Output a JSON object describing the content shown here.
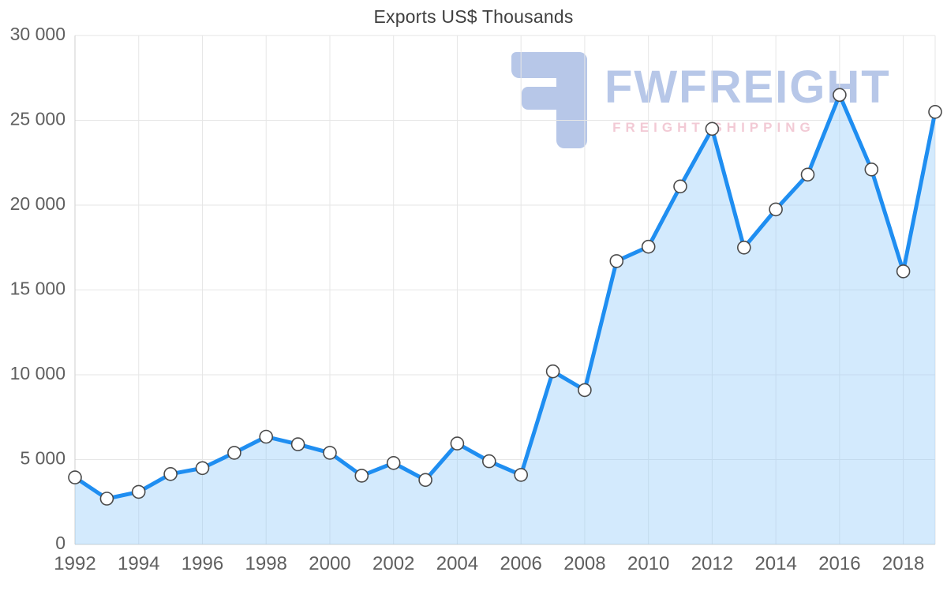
{
  "chart_data": {
    "type": "area",
    "title": "Exports US$ Thousands",
    "x": [
      1992,
      1993,
      1994,
      1995,
      1996,
      1997,
      1998,
      1999,
      2000,
      2001,
      2002,
      2003,
      2004,
      2005,
      2006,
      2007,
      2008,
      2009,
      2010,
      2011,
      2012,
      2013,
      2014,
      2015,
      2016,
      2017,
      2018,
      2019
    ],
    "values": [
      3950,
      2700,
      3100,
      4150,
      4500,
      5400,
      6350,
      5900,
      5400,
      4050,
      4800,
      3800,
      5950,
      4900,
      4100,
      10200,
      9100,
      16700,
      17550,
      21100,
      24500,
      17500,
      19750,
      21800,
      26500,
      22100,
      16100,
      25500
    ],
    "xlabel": "",
    "ylabel": "",
    "ylim": [
      0,
      30000
    ],
    "ytick_values": [
      0,
      5000,
      10000,
      15000,
      20000,
      25000,
      30000
    ],
    "ytick_labels": [
      "0",
      "5 000",
      "10 000",
      "15 000",
      "20 000",
      "25 000",
      "30 000"
    ],
    "xtick_values": [
      1992,
      1994,
      1996,
      1998,
      2000,
      2002,
      2004,
      2006,
      2008,
      2010,
      2012,
      2014,
      2016,
      2018
    ],
    "xtick_labels": [
      "1992",
      "1994",
      "1996",
      "1998",
      "2000",
      "2002",
      "2004",
      "2006",
      "2008",
      "2010",
      "2012",
      "2014",
      "2016",
      "2018"
    ],
    "grid": true,
    "legend": "none",
    "colors": {
      "line": "#1f8ef1",
      "area_fill": "rgba(144,202,249,0.40)",
      "marker_fill": "#ffffff",
      "marker_stroke": "#4a4a4a",
      "grid_line": "#e6e6e6",
      "axis_line": "#cfcfcf",
      "tick_text": "#5f5f5f"
    }
  },
  "watermark": {
    "brand": "FWFREIGHT",
    "tagline": "FREIGHT SHIPPING",
    "brand_color": "#7d9bd7",
    "tagline_color": "#e8a0b4"
  }
}
